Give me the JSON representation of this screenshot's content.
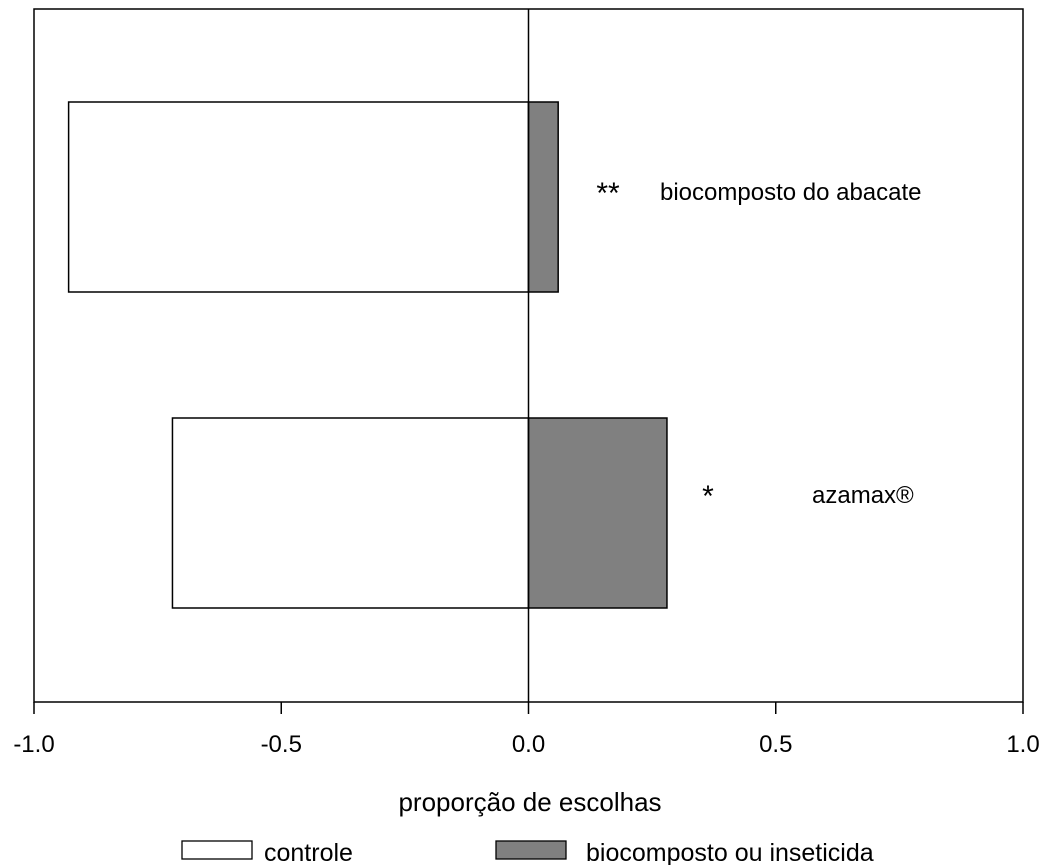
{
  "chart_data": {
    "type": "bar",
    "orientation": "horizontal",
    "xlabel": "proporção de escolhas",
    "xlim": [
      -1.0,
      1.0
    ],
    "xticks": [
      -1.0,
      -0.5,
      0.0,
      0.5,
      1.0
    ],
    "xtick_labels": [
      "-1.0",
      "-0.5",
      "0.0",
      "0.5",
      "1.0"
    ],
    "categories": [
      "biocomposto do abacate",
      "azamax®"
    ],
    "significance": [
      "**",
      "*"
    ],
    "series": [
      {
        "name": "controle",
        "color": "#ffffff",
        "values": [
          -0.93,
          -0.72
        ]
      },
      {
        "name": "biocomposto ou inseticida",
        "color": "#808080",
        "values": [
          0.06,
          0.28
        ]
      }
    ],
    "grid": false,
    "legend_position": "bottom"
  }
}
